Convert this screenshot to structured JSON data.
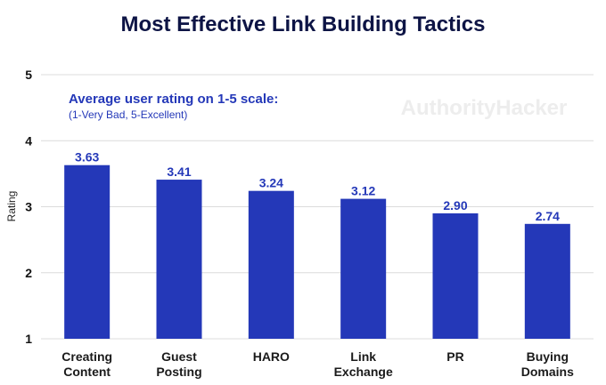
{
  "chart_data": {
    "type": "bar",
    "title": "Most Effective Link Building Tactics",
    "xlabel": "",
    "ylabel": "Rating",
    "ylim": [
      1,
      5
    ],
    "yticks": [
      1,
      2,
      3,
      4,
      5
    ],
    "categories": [
      [
        "Creating",
        "Content"
      ],
      [
        "Guest",
        "Posting"
      ],
      [
        "HARO"
      ],
      [
        "Link",
        "Exchange"
      ],
      [
        "PR"
      ],
      [
        "Buying",
        "Domains"
      ]
    ],
    "values": [
      3.63,
      3.41,
      3.24,
      3.12,
      2.9,
      2.74
    ],
    "value_labels": [
      "3.63",
      "3.41",
      "3.24",
      "3.12",
      "2.90",
      "2.74"
    ],
    "annotation": {
      "line1": "Average user rating on 1-5 scale:",
      "line2": "(1-Very Bad, 5-Excellent)"
    },
    "watermark": "AuthorityHacker",
    "grid": true,
    "bar_color": "#2438b8"
  }
}
